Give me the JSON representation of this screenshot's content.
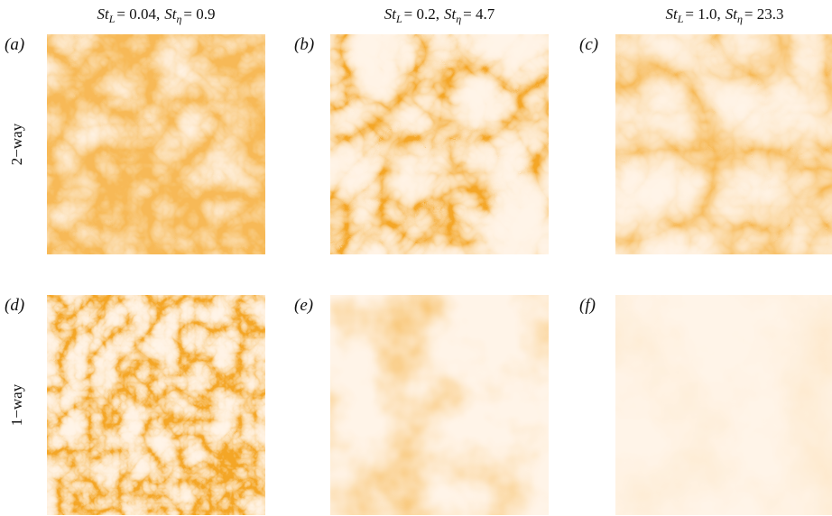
{
  "columns": [
    {
      "terms": [
        {
          "symbol": "St",
          "subscript": "L",
          "value": "= 0.04,"
        },
        {
          "symbol": "St",
          "subscript": "η",
          "value": "= 0.9"
        }
      ]
    },
    {
      "terms": [
        {
          "symbol": "St",
          "subscript": "L",
          "value": "= 0.2,"
        },
        {
          "symbol": "St",
          "subscript": "η",
          "value": "= 4.7"
        }
      ]
    },
    {
      "terms": [
        {
          "symbol": "St",
          "subscript": "L",
          "value": "= 1.0,"
        },
        {
          "symbol": "St",
          "subscript": "η",
          "value": "= 23.3"
        }
      ]
    }
  ],
  "rows": [
    {
      "label": "2−way",
      "panels": [
        "(a)",
        "(b)",
        "(c)"
      ]
    },
    {
      "label": "1−way",
      "panels": [
        "(d)",
        "(e)",
        "(f)"
      ]
    }
  ]
}
